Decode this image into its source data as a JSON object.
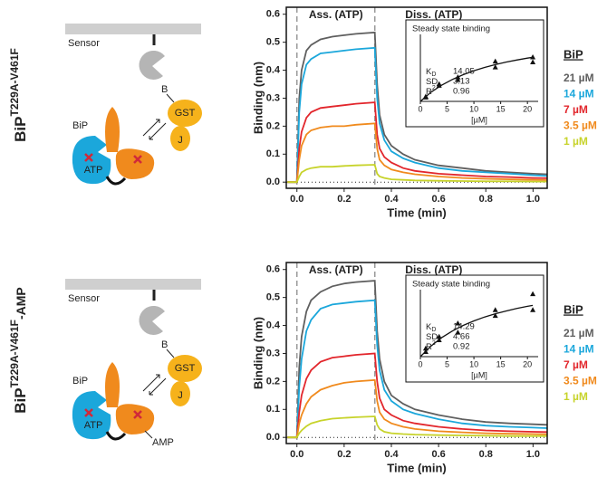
{
  "panels": [
    {
      "row_label": {
        "main": "BiP",
        "sup": "T229A-V461F"
      },
      "diagram": {
        "sensor": "Sensor",
        "b": "B",
        "gst": "GST",
        "j": "J",
        "bip": "BiP",
        "atp": "ATP"
      }
    },
    {
      "row_label": {
        "main": "BiP",
        "sup": "T229A-V461F",
        "suffix": "-AMP"
      },
      "diagram": {
        "sensor": "Sensor",
        "b": "B",
        "gst": "GST",
        "j": "J",
        "bip": "BiP",
        "atp": "ATP",
        "amp": "AMP"
      }
    }
  ],
  "chart_data": [
    {
      "type": "line",
      "xlabel": "Time (min)",
      "ylabel": "Binding (nm)",
      "annotations": [
        "Ass. (ATP)",
        "Diss. (ATP)"
      ],
      "markers": [
        0,
        0.33
      ],
      "xlim": [
        -0.045,
        1.06
      ],
      "ylim": [
        -0.022,
        0.625
      ],
      "xticks": [
        {
          "value": 0,
          "label": "0.0"
        },
        {
          "value": 0.2,
          "label": "0.2"
        },
        {
          "value": 0.4,
          "label": "0.4"
        },
        {
          "value": 0.6,
          "label": "0.6"
        },
        {
          "value": 0.8,
          "label": "0.8"
        },
        {
          "value": 1,
          "label": "1.0"
        }
      ],
      "yticks": [
        {
          "value": 0,
          "label": "0.0"
        },
        0.1,
        0.2,
        0.3,
        0.4,
        0.5,
        0.6
      ],
      "legend_title": "BiP",
      "x": [
        -0.04,
        0,
        0.01,
        0.02,
        0.04,
        0.06,
        0.1,
        0.15,
        0.2,
        0.25,
        0.33,
        0.34,
        0.35,
        0.37,
        0.4,
        0.45,
        0.5,
        0.6,
        0.7,
        0.8,
        0.9,
        1.0,
        1.06
      ],
      "series": [
        {
          "name": "21 µM",
          "color": "#5f5f5f",
          "values": [
            0,
            0,
            0.3,
            0.4,
            0.47,
            0.49,
            0.51,
            0.52,
            0.525,
            0.53,
            0.535,
            0.35,
            0.24,
            0.17,
            0.13,
            0.1,
            0.08,
            0.06,
            0.05,
            0.04,
            0.035,
            0.03,
            0.028
          ]
        },
        {
          "name": "14 µM",
          "color": "#1ba7db",
          "values": [
            0,
            0,
            0.25,
            0.35,
            0.42,
            0.44,
            0.46,
            0.465,
            0.47,
            0.475,
            0.48,
            0.3,
            0.21,
            0.15,
            0.11,
            0.085,
            0.07,
            0.05,
            0.04,
            0.035,
            0.03,
            0.025,
            0.022
          ]
        },
        {
          "name": "7 µM",
          "color": "#e2262c",
          "values": [
            0,
            0,
            0.12,
            0.18,
            0.23,
            0.25,
            0.265,
            0.27,
            0.275,
            0.28,
            0.285,
            0.17,
            0.12,
            0.09,
            0.07,
            0.05,
            0.04,
            0.03,
            0.025,
            0.02,
            0.018,
            0.015,
            0.014
          ]
        },
        {
          "name": "3.5 µM",
          "color": "#f08a1d",
          "values": [
            0,
            0,
            0.08,
            0.13,
            0.17,
            0.185,
            0.195,
            0.2,
            0.2,
            0.205,
            0.21,
            0.12,
            0.08,
            0.06,
            0.045,
            0.035,
            0.028,
            0.02,
            0.015,
            0.012,
            0.01,
            0.008,
            0.007
          ]
        },
        {
          "name": "1 µM",
          "color": "#c7d32b",
          "values": [
            0,
            0,
            0.02,
            0.035,
            0.045,
            0.05,
            0.055,
            0.055,
            0.058,
            0.06,
            0.062,
            0.03,
            0.02,
            0.015,
            0.01,
            0.008,
            0.006,
            0.005,
            0.004,
            0.003,
            0.003,
            0.002,
            0.002
          ]
        }
      ],
      "inset": {
        "title": "Steady state binding",
        "xlabel": "[µM]",
        "xlim": [
          0,
          22
        ],
        "ylim": [
          0,
          0.8
        ],
        "xticks": [
          0,
          5,
          10,
          15,
          20
        ],
        "points": {
          "x": [
            1,
            1,
            3.5,
            3.5,
            7,
            7,
            14,
            14,
            21,
            21
          ],
          "y": [
            0.05,
            0.06,
            0.19,
            0.21,
            0.26,
            0.29,
            0.41,
            0.48,
            0.47,
            0.53
          ]
        },
        "fit": {
          "x": [
            0,
            2,
            4,
            6,
            8,
            10,
            12,
            14,
            16,
            18,
            20,
            21
          ],
          "y": [
            0,
            0.11,
            0.195,
            0.263,
            0.319,
            0.366,
            0.405,
            0.439,
            0.469,
            0.494,
            0.517,
            0.527
          ]
        },
        "stats": [
          {
            "label": "K",
            "label_sub": "D",
            "value": 14.05
          },
          {
            "label": "SD",
            "value": 3.13
          },
          {
            "label": "R",
            "label_sup": "2",
            "value": 0.96
          }
        ]
      }
    },
    {
      "type": "line",
      "xlabel": "Time (min)",
      "ylabel": "Binding (nm)",
      "annotations": [
        "Ass. (ATP)",
        "Diss. (ATP)"
      ],
      "markers": [
        0,
        0.33
      ],
      "xlim": [
        -0.045,
        1.06
      ],
      "ylim": [
        -0.022,
        0.625
      ],
      "xticks": [
        {
          "value": 0,
          "label": "0.0"
        },
        {
          "value": 0.2,
          "label": "0.2"
        },
        {
          "value": 0.4,
          "label": "0.4"
        },
        {
          "value": 0.6,
          "label": "0.6"
        },
        {
          "value": 0.8,
          "label": "0.8"
        },
        {
          "value": 1,
          "label": "1.0"
        }
      ],
      "yticks": [
        {
          "value": 0,
          "label": "0.0"
        },
        0.1,
        0.2,
        0.3,
        0.4,
        0.5,
        0.6
      ],
      "legend_title": "BiP",
      "x": [
        -0.04,
        0,
        0.01,
        0.02,
        0.04,
        0.06,
        0.1,
        0.15,
        0.2,
        0.25,
        0.33,
        0.34,
        0.35,
        0.37,
        0.4,
        0.45,
        0.5,
        0.6,
        0.7,
        0.8,
        0.9,
        1.0,
        1.06
      ],
      "series": [
        {
          "name": "21 µM",
          "color": "#5f5f5f",
          "values": [
            0,
            0,
            0.25,
            0.36,
            0.45,
            0.49,
            0.52,
            0.54,
            0.55,
            0.555,
            0.56,
            0.38,
            0.28,
            0.2,
            0.15,
            0.12,
            0.1,
            0.08,
            0.065,
            0.055,
            0.05,
            0.047,
            0.045
          ]
        },
        {
          "name": "14 µM",
          "color": "#1ba7db",
          "values": [
            0,
            0,
            0.18,
            0.28,
            0.38,
            0.42,
            0.46,
            0.475,
            0.48,
            0.485,
            0.49,
            0.33,
            0.24,
            0.17,
            0.13,
            0.1,
            0.085,
            0.065,
            0.05,
            0.042,
            0.038,
            0.035,
            0.033
          ]
        },
        {
          "name": "7 µM",
          "color": "#e2262c",
          "values": [
            0,
            0,
            0.09,
            0.15,
            0.21,
            0.24,
            0.27,
            0.285,
            0.29,
            0.295,
            0.3,
            0.2,
            0.14,
            0.1,
            0.08,
            0.06,
            0.05,
            0.038,
            0.03,
            0.025,
            0.022,
            0.02,
            0.019
          ]
        },
        {
          "name": "3.5 µM",
          "color": "#f08a1d",
          "values": [
            0,
            0,
            0.05,
            0.08,
            0.12,
            0.145,
            0.17,
            0.185,
            0.195,
            0.2,
            0.205,
            0.13,
            0.09,
            0.065,
            0.05,
            0.038,
            0.03,
            0.022,
            0.018,
            0.015,
            0.013,
            0.012,
            0.011
          ]
        },
        {
          "name": "1 µM",
          "color": "#c7d32b",
          "values": [
            0,
            0,
            0.015,
            0.025,
            0.04,
            0.05,
            0.06,
            0.067,
            0.07,
            0.072,
            0.075,
            0.045,
            0.03,
            0.02,
            0.015,
            0.012,
            0.01,
            0.008,
            0.007,
            0.006,
            0.005,
            0.005,
            0.005
          ]
        }
      ],
      "inset": {
        "title": "Steady state binding",
        "xlabel": "[µM]",
        "xlim": [
          0,
          22
        ],
        "ylim": [
          0,
          0.8
        ],
        "xticks": [
          0,
          5,
          10,
          15,
          20
        ],
        "points": {
          "x": [
            1,
            1,
            3.5,
            3.5,
            7,
            7,
            14,
            14,
            21,
            21
          ],
          "y": [
            0.06,
            0.1,
            0.2,
            0.24,
            0.29,
            0.4,
            0.49,
            0.56,
            0.56,
            0.75
          ]
        },
        "fit": {
          "x": [
            0,
            2,
            4,
            6,
            8,
            10,
            12,
            14,
            16,
            18,
            20,
            21
          ],
          "y": [
            0,
            0.127,
            0.228,
            0.307,
            0.373,
            0.427,
            0.473,
            0.512,
            0.545,
            0.575,
            0.601,
            0.612
          ]
        },
        "stats": [
          {
            "label": "K",
            "label_sub": "D",
            "value": 14.29
          },
          {
            "label": "SD",
            "value": 4.66
          },
          {
            "label": "R",
            "label_sup": "2",
            "value": 0.92
          }
        ]
      }
    }
  ]
}
